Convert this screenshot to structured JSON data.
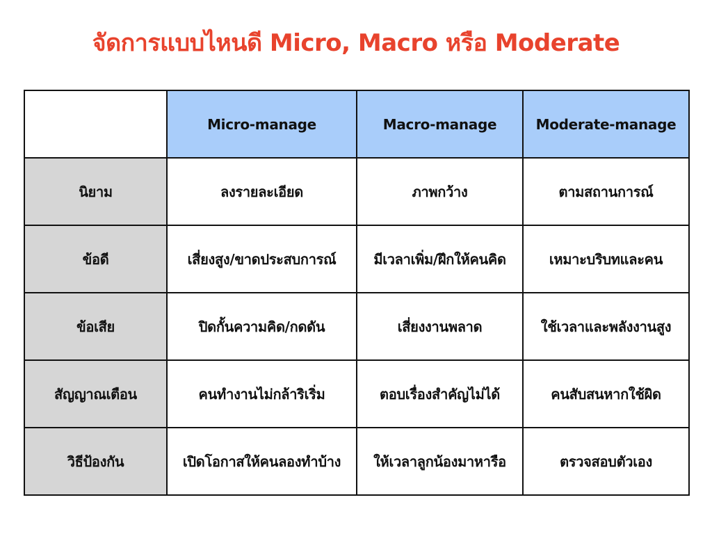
{
  "title": "จัดการแบบไหนดี Micro, Macro หรือ Moderate",
  "colors": {
    "title": "#e8432d",
    "header_bg": "#a9cdfa",
    "row_header_bg": "#d6d6d6"
  },
  "table": {
    "columns": [
      "",
      "Micro-manage",
      "Macro-manage",
      "Moderate-manage"
    ],
    "rows": [
      {
        "label": "นิยาม",
        "cells": [
          "ลงรายละเอียด",
          "ภาพกว้าง",
          "ตามสถานการณ์"
        ]
      },
      {
        "label": "ข้อดี",
        "cells": [
          "เสี่ยงสูง/ขาดประสบการณ์",
          "มีเวลาเพิ่ม/ฝึกให้คนคิด",
          "เหมาะบริบทและคน"
        ]
      },
      {
        "label": "ข้อเสีย",
        "cells": [
          "ปิดกั้นความคิด/กดดัน",
          "เสี่ยงงานพลาด",
          "ใช้เวลาและพลังงานสูง"
        ]
      },
      {
        "label": "สัญญาณเตือน",
        "cells": [
          "คนทำงานไม่กล้าริเริ่ม",
          "ตอบเรื่องสำคัญไม่ได้",
          "คนสับสนหากใช้ผิด"
        ]
      },
      {
        "label": "วิธีป้องกัน",
        "cells": [
          "เปิดโอกาสให้คนลองทำบ้าง",
          "ให้เวลาลูกน้องมาหารือ",
          "ตรวจสอบตัวเอง"
        ]
      }
    ]
  }
}
